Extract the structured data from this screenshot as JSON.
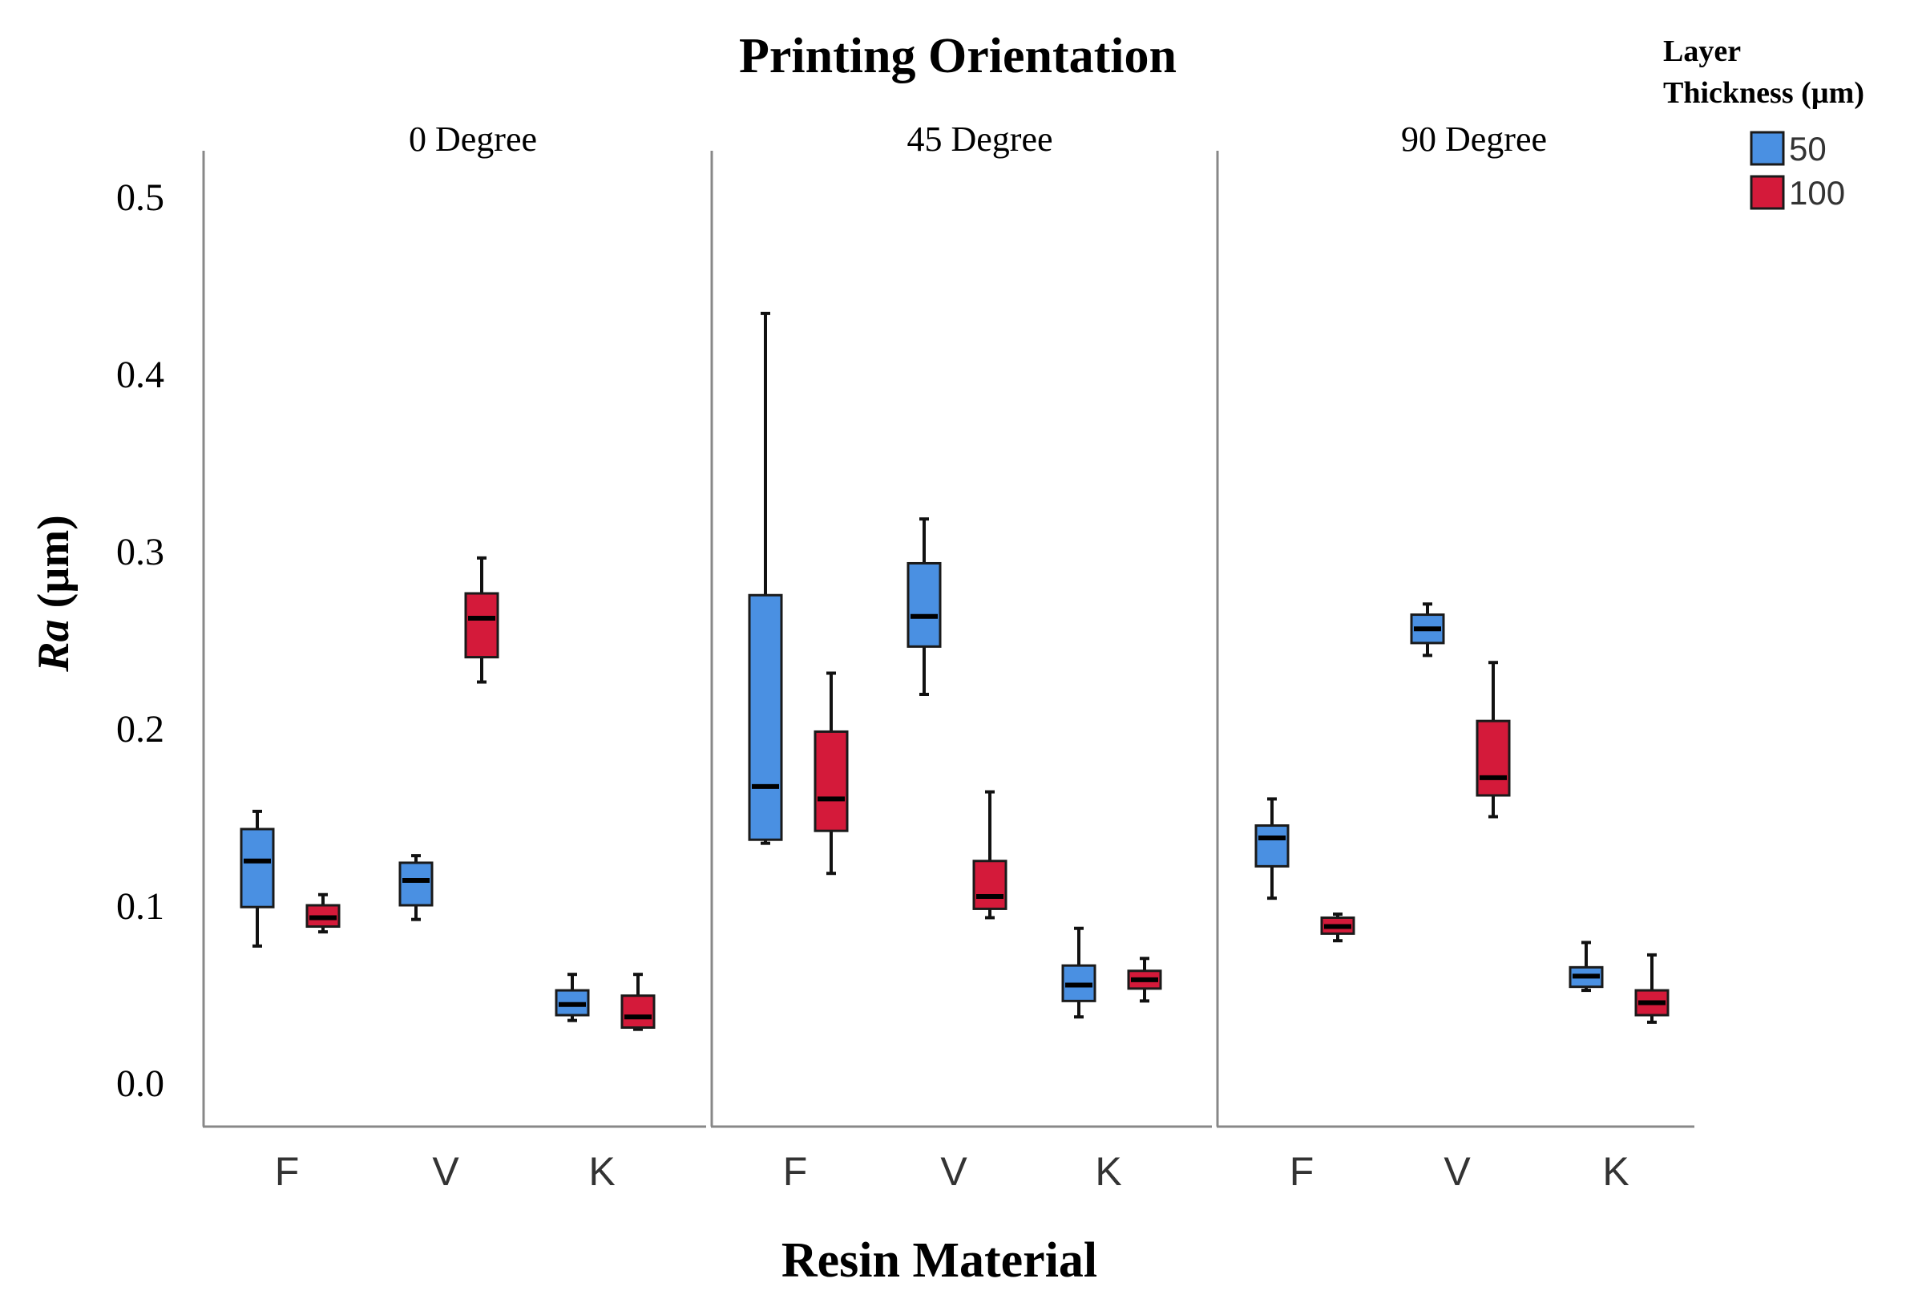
{
  "chart_data": {
    "type": "boxplot",
    "title": "Printing Orientation",
    "xlabel": "Resin Material",
    "ylabel_italic": "Ra",
    "ylabel_unit": "(µm)",
    "ylim": [
      0.0,
      0.5
    ],
    "yticks": [
      0.0,
      0.1,
      0.2,
      0.3,
      0.4,
      0.5
    ],
    "ytick_labels": [
      "0.0",
      "0.1",
      "0.2",
      "0.3",
      "0.4",
      "0.5"
    ],
    "categories": [
      "F",
      "V",
      "K"
    ],
    "legend": {
      "title_line1": "Layer",
      "title_line2": "Thickness (µm)",
      "placement": "top-right",
      "entries": [
        {
          "label": "50",
          "color": "#4a90e2"
        },
        {
          "label": "100",
          "color": "#d41a3a"
        }
      ]
    },
    "panels": [
      {
        "label": "0  Degree",
        "boxes": [
          {
            "category": "F",
            "series": "50",
            "min": 0.077,
            "q1": 0.099,
            "median": 0.125,
            "q3": 0.143,
            "max": 0.153
          },
          {
            "category": "F",
            "series": "100",
            "min": 0.085,
            "q1": 0.088,
            "median": 0.093,
            "q3": 0.1,
            "max": 0.106
          },
          {
            "category": "V",
            "series": "50",
            "min": 0.092,
            "q1": 0.1,
            "median": 0.114,
            "q3": 0.124,
            "max": 0.128
          },
          {
            "category": "V",
            "series": "100",
            "min": 0.226,
            "q1": 0.24,
            "median": 0.262,
            "q3": 0.276,
            "max": 0.296
          },
          {
            "category": "K",
            "series": "50",
            "min": 0.035,
            "q1": 0.038,
            "median": 0.044,
            "q3": 0.052,
            "max": 0.061
          },
          {
            "category": "K",
            "series": "100",
            "min": 0.03,
            "q1": 0.031,
            "median": 0.037,
            "q3": 0.049,
            "max": 0.061
          }
        ]
      },
      {
        "label": "45 Degree",
        "boxes": [
          {
            "category": "F",
            "series": "50",
            "min": 0.135,
            "q1": 0.137,
            "median": 0.167,
            "q3": 0.275,
            "max": 0.434
          },
          {
            "category": "F",
            "series": "100",
            "min": 0.118,
            "q1": 0.142,
            "median": 0.16,
            "q3": 0.198,
            "max": 0.231
          },
          {
            "category": "V",
            "series": "50",
            "min": 0.219,
            "q1": 0.246,
            "median": 0.263,
            "q3": 0.293,
            "max": 0.318
          },
          {
            "category": "V",
            "series": "100",
            "min": 0.093,
            "q1": 0.098,
            "median": 0.105,
            "q3": 0.125,
            "max": 0.164
          },
          {
            "category": "K",
            "series": "50",
            "min": 0.037,
            "q1": 0.046,
            "median": 0.055,
            "q3": 0.066,
            "max": 0.087
          },
          {
            "category": "K",
            "series": "100",
            "min": 0.046,
            "q1": 0.053,
            "median": 0.058,
            "q3": 0.063,
            "max": 0.07
          }
        ]
      },
      {
        "label": "90  Degree",
        "boxes": [
          {
            "category": "F",
            "series": "50",
            "min": 0.104,
            "q1": 0.122,
            "median": 0.138,
            "q3": 0.145,
            "max": 0.16
          },
          {
            "category": "F",
            "series": "100",
            "min": 0.08,
            "q1": 0.084,
            "median": 0.088,
            "q3": 0.093,
            "max": 0.095
          },
          {
            "category": "V",
            "series": "50",
            "min": 0.241,
            "q1": 0.248,
            "median": 0.256,
            "q3": 0.264,
            "max": 0.27
          },
          {
            "category": "V",
            "series": "100",
            "min": 0.15,
            "q1": 0.162,
            "median": 0.172,
            "q3": 0.204,
            "max": 0.237
          },
          {
            "category": "K",
            "series": "50",
            "min": 0.052,
            "q1": 0.054,
            "median": 0.06,
            "q3": 0.065,
            "max": 0.079
          },
          {
            "category": "K",
            "series": "100",
            "min": 0.034,
            "q1": 0.038,
            "median": 0.045,
            "q3": 0.052,
            "max": 0.072
          }
        ]
      }
    ]
  }
}
